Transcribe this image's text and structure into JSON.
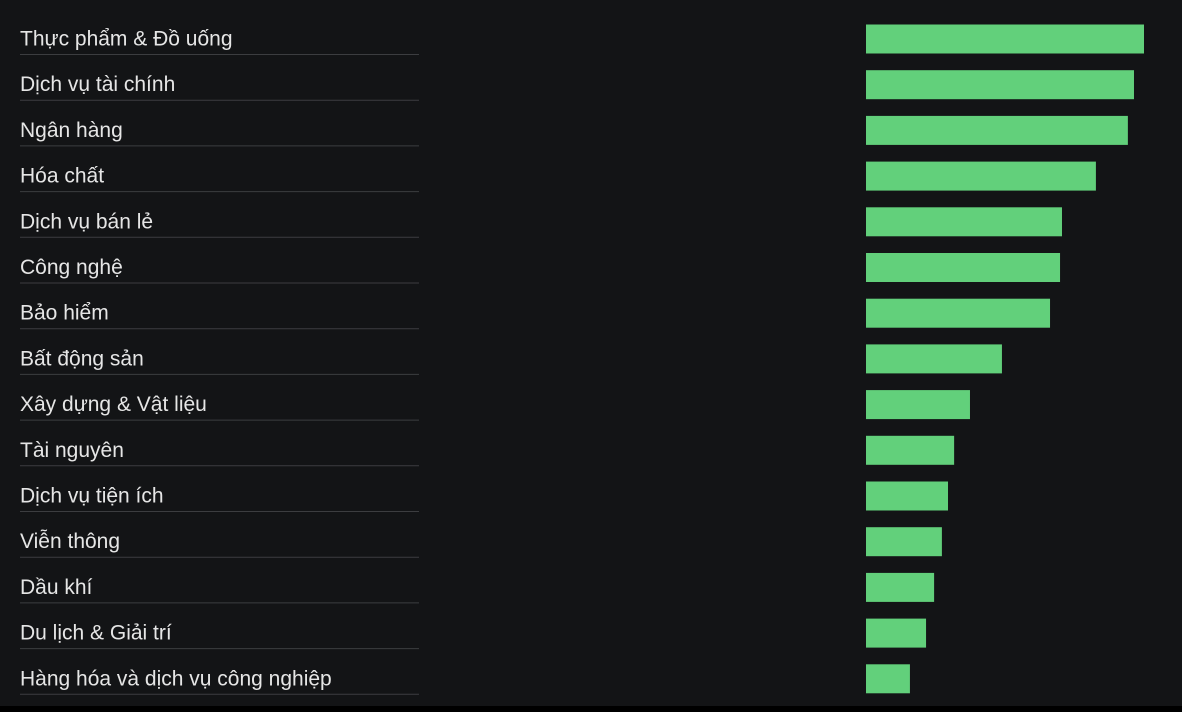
{
  "theme": {
    "background": "#131416",
    "bar_color": "#62d07b",
    "label_color": "#e6e6e6",
    "separator_color": "#3c3d40"
  },
  "chart_data": {
    "type": "bar",
    "orientation": "horizontal",
    "categories": [
      "Thực phẩm & Đồ uống",
      "Dịch vụ tài chính",
      "Ngân hàng",
      "Hóa chất",
      "Dịch vụ bán lẻ",
      "Công nghệ",
      "Bảo hiểm",
      "Bất động sản",
      "Xây dựng & Vật liệu",
      "Tài nguyên",
      "Dịch vụ tiện ích",
      "Viễn thông",
      "Dầu khí",
      "Du lịch & Giải trí",
      "Hàng hóa và dịch vụ công nghiệp"
    ],
    "values": [
      100,
      96.4,
      94.2,
      82.7,
      70.5,
      69.8,
      66.2,
      48.9,
      37.4,
      31.7,
      29.5,
      27.3,
      24.5,
      21.6,
      15.8
    ],
    "xlim": [
      0,
      100
    ],
    "grid": false,
    "legend": "none"
  }
}
